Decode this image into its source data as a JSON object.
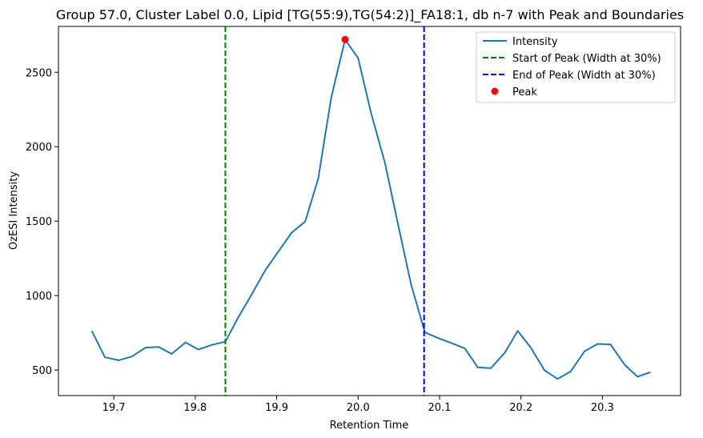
{
  "chart_data": {
    "type": "line",
    "title": "Group 57.0, Cluster Label 0.0, Lipid [TG(55:9),TG(54:2)]_FA18:1, db n-7 with Peak and Boundaries",
    "xlabel": "Retention Time",
    "ylabel": "OzESI Intensity",
    "xlim": [
      19.632,
      20.396
    ],
    "ylim": [
      328,
      2808
    ],
    "x_ticks": [
      19.7,
      19.8,
      19.9,
      20.0,
      20.1,
      20.2,
      20.3
    ],
    "x_tick_labels": [
      "19.7",
      "19.8",
      "19.9",
      "20.0",
      "20.1",
      "20.2",
      "20.3"
    ],
    "y_ticks": [
      500,
      1000,
      1500,
      2000,
      2500
    ],
    "y_tick_labels": [
      "500",
      "1000",
      "1500",
      "2000",
      "2500"
    ],
    "grid": false,
    "legend_position": "top-right",
    "series": [
      {
        "name": "Intensity",
        "color": "#1f77b4",
        "style": "solid",
        "x": [
          19.673,
          19.689,
          19.706,
          19.722,
          19.739,
          19.755,
          19.771,
          19.788,
          19.804,
          19.82,
          19.837,
          19.853,
          19.869,
          19.886,
          19.902,
          19.918,
          19.935,
          19.951,
          19.967,
          19.984,
          20.0,
          20.016,
          20.033,
          20.049,
          20.065,
          20.082,
          20.098,
          20.114,
          20.131,
          20.147,
          20.163,
          20.18,
          20.196,
          20.212,
          20.229,
          20.245,
          20.261,
          20.278,
          20.294,
          20.31,
          20.327,
          20.343,
          20.359
        ],
        "y": [
          762,
          585,
          565,
          590,
          650,
          655,
          608,
          685,
          637,
          668,
          690,
          855,
          1005,
          1170,
          1295,
          1420,
          1497,
          1785,
          2330,
          2720,
          2595,
          2225,
          1890,
          1480,
          1075,
          752,
          715,
          682,
          645,
          517,
          512,
          615,
          762,
          650,
          497,
          440,
          490,
          625,
          675,
          672,
          537,
          455,
          485
        ]
      }
    ],
    "boundaries": [
      {
        "name": "Start of Peak (Width at 30%)",
        "x": 19.837,
        "color": "#008000",
        "style": "dashed"
      },
      {
        "name": "End of Peak (Width at 30%)",
        "x": 20.081,
        "color": "#0000ff",
        "style": "dashed"
      }
    ],
    "peak": {
      "name": "Peak",
      "x": 19.984,
      "y": 2720,
      "color": "#ff0000"
    }
  }
}
